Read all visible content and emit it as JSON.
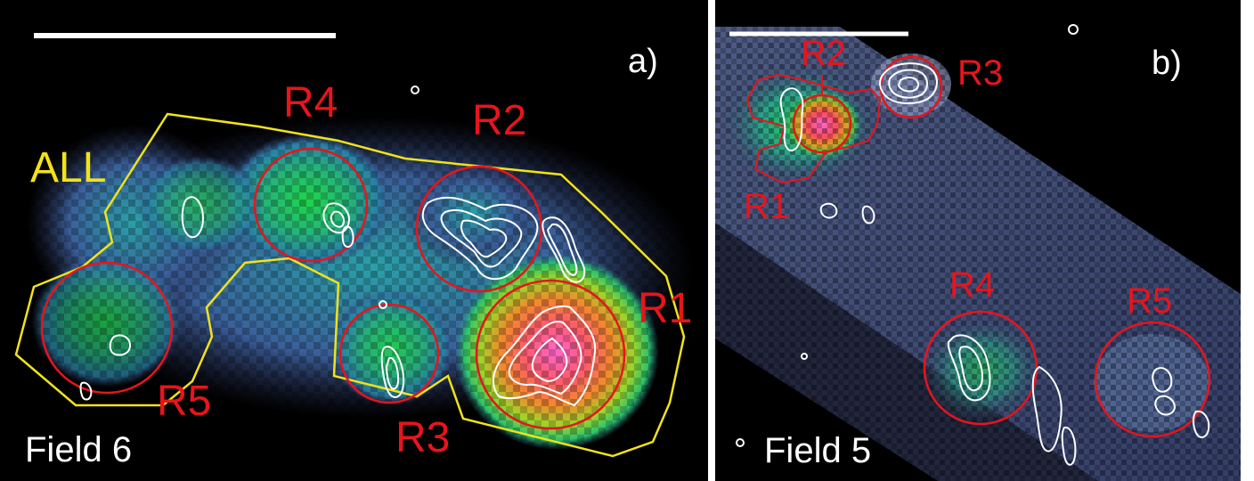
{
  "panels": [
    {
      "id": "a",
      "panel_label": "a)",
      "field_label": "Field 6",
      "polygon_label": "ALL",
      "regions": [
        "R1",
        "R2",
        "R3",
        "R4",
        "R5"
      ]
    },
    {
      "id": "b",
      "panel_label": "b)",
      "field_label": "Field 5",
      "regions": [
        "R1",
        "R2",
        "R3",
        "R4",
        "R5"
      ]
    }
  ],
  "colors": {
    "region_circle": "#e8141c",
    "polygon": "#f2e21a",
    "contour": "#ffffff",
    "scale_bar": "#ffffff"
  }
}
